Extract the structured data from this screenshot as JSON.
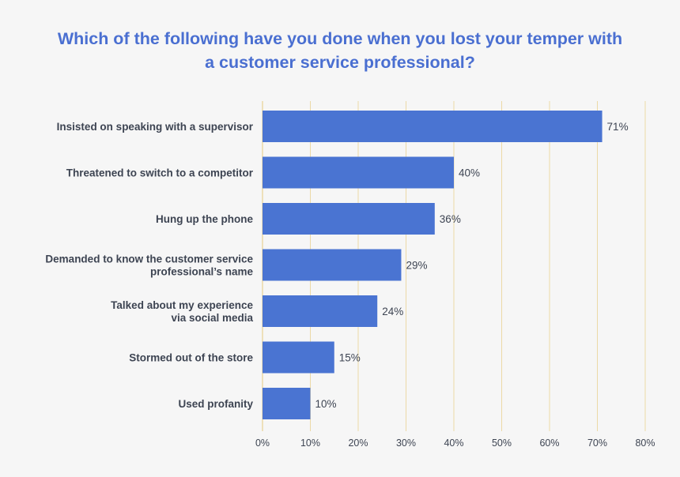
{
  "chart_data": {
    "type": "bar",
    "orientation": "horizontal",
    "title_lines": [
      "Which of the following have you done when you lost your temper with",
      "a customer service professional?"
    ],
    "categories": [
      [
        "Insisted on speaking with a supervisor"
      ],
      [
        "Threatened to switch to a competitor"
      ],
      [
        "Hung up the phone"
      ],
      [
        "Demanded to know the customer service",
        "professional’s name"
      ],
      [
        "Talked about my experience",
        "via social media"
      ],
      [
        "Stormed out of the store"
      ],
      [
        "Used profanity"
      ]
    ],
    "values": [
      71,
      40,
      36,
      29,
      24,
      15,
      10
    ],
    "value_labels": [
      "71%",
      "40%",
      "36%",
      "29%",
      "24%",
      "15%",
      "10%"
    ],
    "xlim": [
      0,
      80
    ],
    "ticks": [
      0,
      10,
      20,
      30,
      40,
      50,
      60,
      70,
      80
    ],
    "tick_labels": [
      "0%",
      "10%",
      "20%",
      "30%",
      "40%",
      "50%",
      "60%",
      "70%",
      "80%"
    ],
    "grid": true,
    "colors": {
      "bar": "#4a74d2",
      "grid": "#ecd9a6",
      "title": "#4a6fd1",
      "text": "#3d4452"
    }
  }
}
